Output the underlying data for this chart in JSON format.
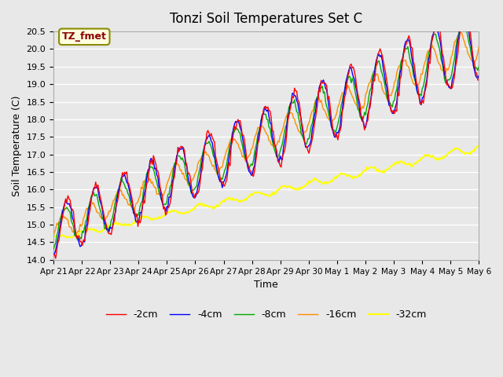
{
  "title": "Tonzi Soil Temperatures Set C",
  "xlabel": "Time",
  "ylabel": "Soil Temperature (C)",
  "ylim": [
    14.0,
    20.5
  ],
  "annotation": "TZ_fmet",
  "annotation_color": "#8B0000",
  "annotation_bg": "#FFFFE0",
  "annotation_border": "#8B8B00",
  "plot_bg": "#E8E8E8",
  "grid_color": "white",
  "series_colors": {
    "-2cm": "#FF0000",
    "-4cm": "#0000FF",
    "-8cm": "#00AA00",
    "-16cm": "#FF8C00",
    "-32cm": "#FFFF00"
  },
  "xtick_labels": [
    "Apr 21",
    "Apr 22",
    "Apr 23",
    "Apr 24",
    "Apr 25",
    "Apr 26",
    "Apr 27",
    "Apr 28",
    "Apr 29",
    "Apr 30",
    "May 1",
    "May 2",
    "May 3",
    "May 4",
    "May 5",
    "May 6"
  ],
  "n_days": 15,
  "points_per_day": 24
}
